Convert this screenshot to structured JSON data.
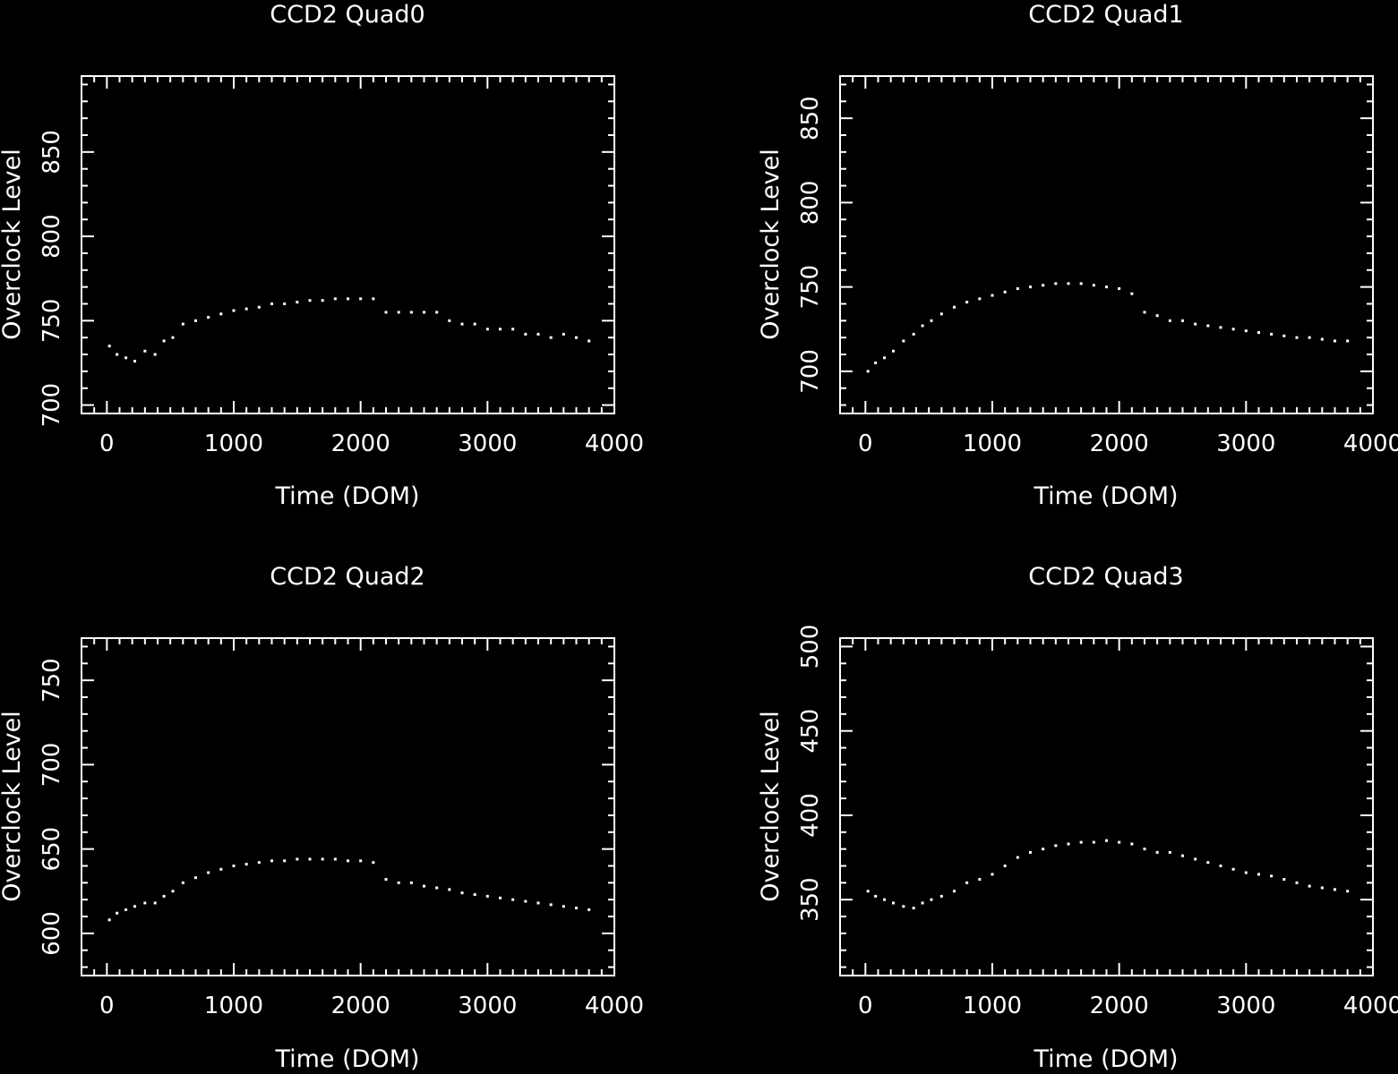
{
  "figure": {
    "background": "#000000",
    "foreground": "#ffffff"
  },
  "chart_data": [
    {
      "type": "scatter",
      "title": "CCD2 Quad0",
      "xlabel": "Time (DOM)",
      "ylabel": "Overclock Level",
      "xlim": [
        -200,
        4000
      ],
      "ylim": [
        695,
        895
      ],
      "xticks": [
        0,
        1000,
        2000,
        3000,
        4000
      ],
      "yticks": [
        700,
        750,
        800,
        850
      ],
      "grid": false,
      "series": [
        {
          "x": [
            20,
            80,
            150,
            220,
            300,
            380,
            450,
            520,
            600,
            700,
            800,
            900,
            1000,
            1100,
            1200,
            1300,
            1400,
            1500,
            1600,
            1700,
            1800,
            1900,
            2000,
            2100,
            2200,
            2300,
            2400,
            2500,
            2600,
            2700,
            2800,
            2900,
            3000,
            3100,
            3200,
            3300,
            3400,
            3500,
            3600,
            3700,
            3800
          ],
          "y": [
            735,
            730,
            728,
            726,
            732,
            730,
            738,
            740,
            748,
            750,
            752,
            754,
            756,
            757,
            758,
            760,
            760,
            761,
            762,
            762,
            763,
            763,
            763,
            763,
            755,
            755,
            755,
            755,
            755,
            750,
            748,
            748,
            745,
            745,
            745,
            742,
            742,
            740,
            742,
            740,
            738
          ]
        }
      ]
    },
    {
      "type": "scatter",
      "title": "CCD2 Quad1",
      "xlabel": "Time (DOM)",
      "ylabel": "Overclock Level",
      "xlim": [
        -200,
        4000
      ],
      "ylim": [
        675,
        875
      ],
      "xticks": [
        0,
        1000,
        2000,
        3000,
        4000
      ],
      "yticks": [
        700,
        750,
        800,
        850
      ],
      "grid": false,
      "series": [
        {
          "x": [
            20,
            80,
            150,
            220,
            300,
            380,
            450,
            520,
            600,
            700,
            800,
            900,
            1000,
            1100,
            1200,
            1300,
            1400,
            1500,
            1600,
            1700,
            1800,
            1900,
            2000,
            2100,
            2200,
            2300,
            2400,
            2500,
            2600,
            2700,
            2800,
            2900,
            3000,
            3100,
            3200,
            3300,
            3400,
            3500,
            3600,
            3700,
            3800
          ],
          "y": [
            700,
            705,
            708,
            712,
            718,
            722,
            727,
            730,
            734,
            738,
            741,
            743,
            745,
            747,
            749,
            750,
            751,
            752,
            752,
            752,
            751,
            750,
            749,
            746,
            735,
            733,
            730,
            730,
            728,
            727,
            726,
            725,
            724,
            723,
            722,
            721,
            720,
            720,
            719,
            718,
            718
          ]
        }
      ]
    },
    {
      "type": "scatter",
      "title": "CCD2 Quad2",
      "xlabel": "Time (DOM)",
      "ylabel": "Overclock Level",
      "xlim": [
        -200,
        4000
      ],
      "ylim": [
        575,
        775
      ],
      "xticks": [
        0,
        1000,
        2000,
        3000,
        4000
      ],
      "yticks": [
        600,
        650,
        700,
        750
      ],
      "grid": false,
      "series": [
        {
          "x": [
            20,
            80,
            150,
            220,
            300,
            380,
            450,
            520,
            600,
            700,
            800,
            900,
            1000,
            1100,
            1200,
            1300,
            1400,
            1500,
            1600,
            1700,
            1800,
            1900,
            2000,
            2100,
            2200,
            2300,
            2400,
            2500,
            2600,
            2700,
            2800,
            2900,
            3000,
            3100,
            3200,
            3300,
            3400,
            3500,
            3600,
            3700,
            3800
          ],
          "y": [
            608,
            612,
            614,
            616,
            618,
            618,
            622,
            625,
            630,
            633,
            636,
            638,
            640,
            641,
            642,
            643,
            643,
            644,
            644,
            644,
            644,
            643,
            643,
            642,
            632,
            630,
            630,
            628,
            627,
            626,
            624,
            623,
            622,
            621,
            620,
            619,
            618,
            617,
            616,
            615,
            614
          ]
        }
      ]
    },
    {
      "type": "scatter",
      "title": "CCD2 Quad3",
      "xlabel": "Time (DOM)",
      "ylabel": "Overclock Level",
      "xlim": [
        -200,
        4000
      ],
      "ylim": [
        305,
        505
      ],
      "xticks": [
        0,
        1000,
        2000,
        3000,
        4000
      ],
      "yticks": [
        350,
        400,
        450,
        500
      ],
      "grid": false,
      "series": [
        {
          "x": [
            20,
            80,
            150,
            220,
            300,
            380,
            450,
            520,
            600,
            700,
            800,
            900,
            1000,
            1100,
            1200,
            1300,
            1400,
            1500,
            1600,
            1700,
            1800,
            1900,
            2000,
            2100,
            2200,
            2300,
            2400,
            2500,
            2600,
            2700,
            2800,
            2900,
            3000,
            3100,
            3200,
            3300,
            3400,
            3500,
            3600,
            3700,
            3800
          ],
          "y": [
            355,
            352,
            350,
            348,
            346,
            345,
            348,
            350,
            352,
            355,
            360,
            362,
            365,
            370,
            375,
            378,
            380,
            382,
            383,
            384,
            384,
            385,
            384,
            383,
            380,
            378,
            378,
            376,
            374,
            372,
            370,
            368,
            366,
            365,
            364,
            362,
            360,
            358,
            357,
            356,
            355
          ]
        }
      ]
    }
  ]
}
